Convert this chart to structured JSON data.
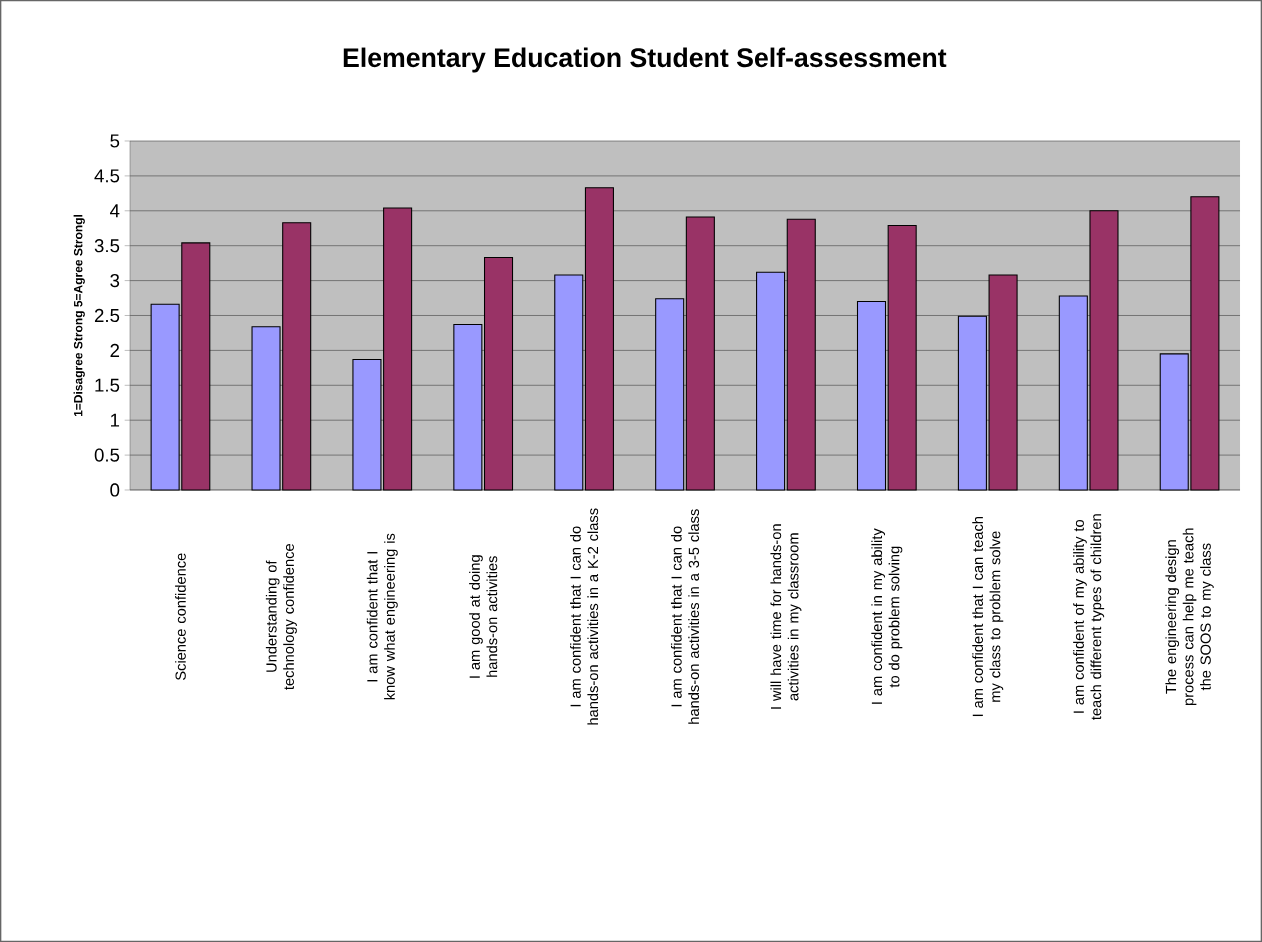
{
  "chart_data": {
    "type": "bar",
    "title": "Elementary Education Student Self-assessment",
    "ylabel": "1=Disagree Strong  5=Agree Strongl",
    "categories": [
      "Science confidence",
      "Understanding of technology confidence",
      "I am confident that I know what engineering is",
      "I am good at doing hands-on activities",
      "I am confident that I can do hands-on activities in a K-2 class",
      "I am confident that I can do hands-on activities in a 3-5 class",
      "I will have time for hands-on activities in my classroom",
      "I am confident in my ability to do problem solving",
      "I am confident that I can teach my class to problem solve",
      "I am confident of my ability to teach different types of children",
      "The engineering design process can help me teach the SOOS to my class"
    ],
    "series": [
      {
        "color": "#9999ff",
        "values": [
          2.66,
          2.34,
          1.87,
          2.37,
          3.08,
          2.74,
          3.12,
          2.7,
          2.49,
          2.78,
          1.95
        ]
      },
      {
        "color": "#993366",
        "values": [
          3.54,
          3.83,
          4.04,
          3.33,
          4.33,
          3.91,
          3.88,
          3.79,
          3.08,
          4.0,
          4.2
        ]
      }
    ],
    "ylim": [
      0,
      5
    ],
    "yticks": [
      0,
      0.5,
      1,
      1.5,
      2,
      2.5,
      3,
      3.5,
      4,
      4.5,
      5
    ],
    "grid": "y"
  }
}
